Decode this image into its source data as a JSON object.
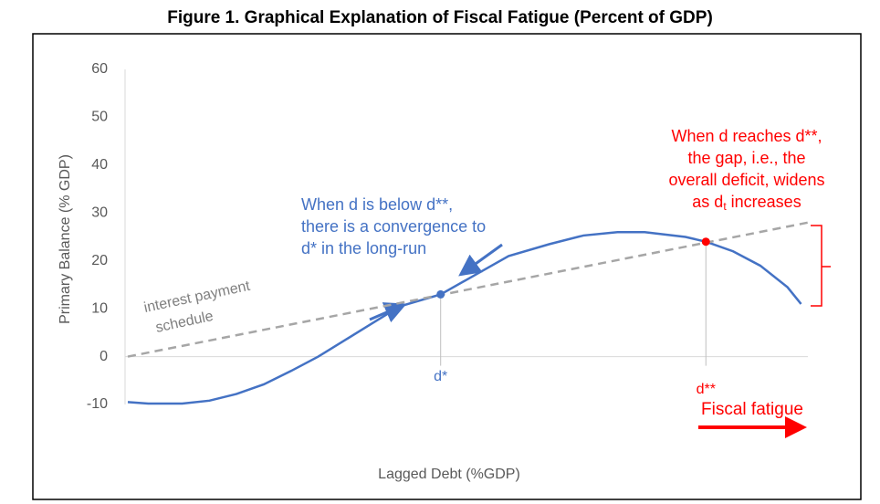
{
  "chart_data": {
    "type": "line",
    "title": "Figure 1. Graphical Explanation of Fiscal Fatigue (Percent of GDP)",
    "y_label": "Primary Balance (% GDP)",
    "x_label": "Lagged Debt (%GDP)",
    "ylim": [
      -10,
      60
    ],
    "yticks": [
      -10,
      0,
      10,
      20,
      30,
      40,
      50,
      60
    ],
    "xlim": [
      0,
      100
    ],
    "grid": false,
    "series": [
      {
        "color": "#4472c4",
        "dashed": false,
        "x": [
          0,
          3,
          8,
          12,
          16,
          20,
          24,
          28,
          32,
          36,
          40,
          46,
          51,
          56,
          62,
          67,
          72,
          76,
          82,
          85,
          89,
          93,
          97,
          99
        ],
        "values": [
          -9.5,
          -9.8,
          -9.8,
          -9.2,
          -7.8,
          -5.8,
          -3,
          0,
          3.5,
          7,
          10.5,
          13,
          17,
          21,
          23.5,
          25.3,
          26,
          26,
          25,
          24,
          22,
          19,
          14.5,
          11
        ]
      },
      {
        "color": "#a6a6a6",
        "dashed": true,
        "x": [
          0,
          100
        ],
        "values": [
          0,
          28
        ]
      }
    ],
    "points": [
      {
        "label": "d*",
        "x": 46,
        "y": 13,
        "color": "#4472c4"
      },
      {
        "label": "d**",
        "x": 85,
        "y": 24,
        "color": "#ff0000"
      }
    ],
    "annotations": {
      "convergence": [
        "When d is below d**,",
        "there is a convergence to",
        "d* in the long-run"
      ],
      "fatigue_note": [
        "When d reaches d**,",
        "the gap, i.e., the",
        "overall deficit, widens",
        [
          "as d",
          "t",
          " increases"
        ]
      ],
      "interest_label": [
        "interest payment",
        "schedule"
      ],
      "fiscal_fatigue": "Fiscal fatigue"
    }
  }
}
